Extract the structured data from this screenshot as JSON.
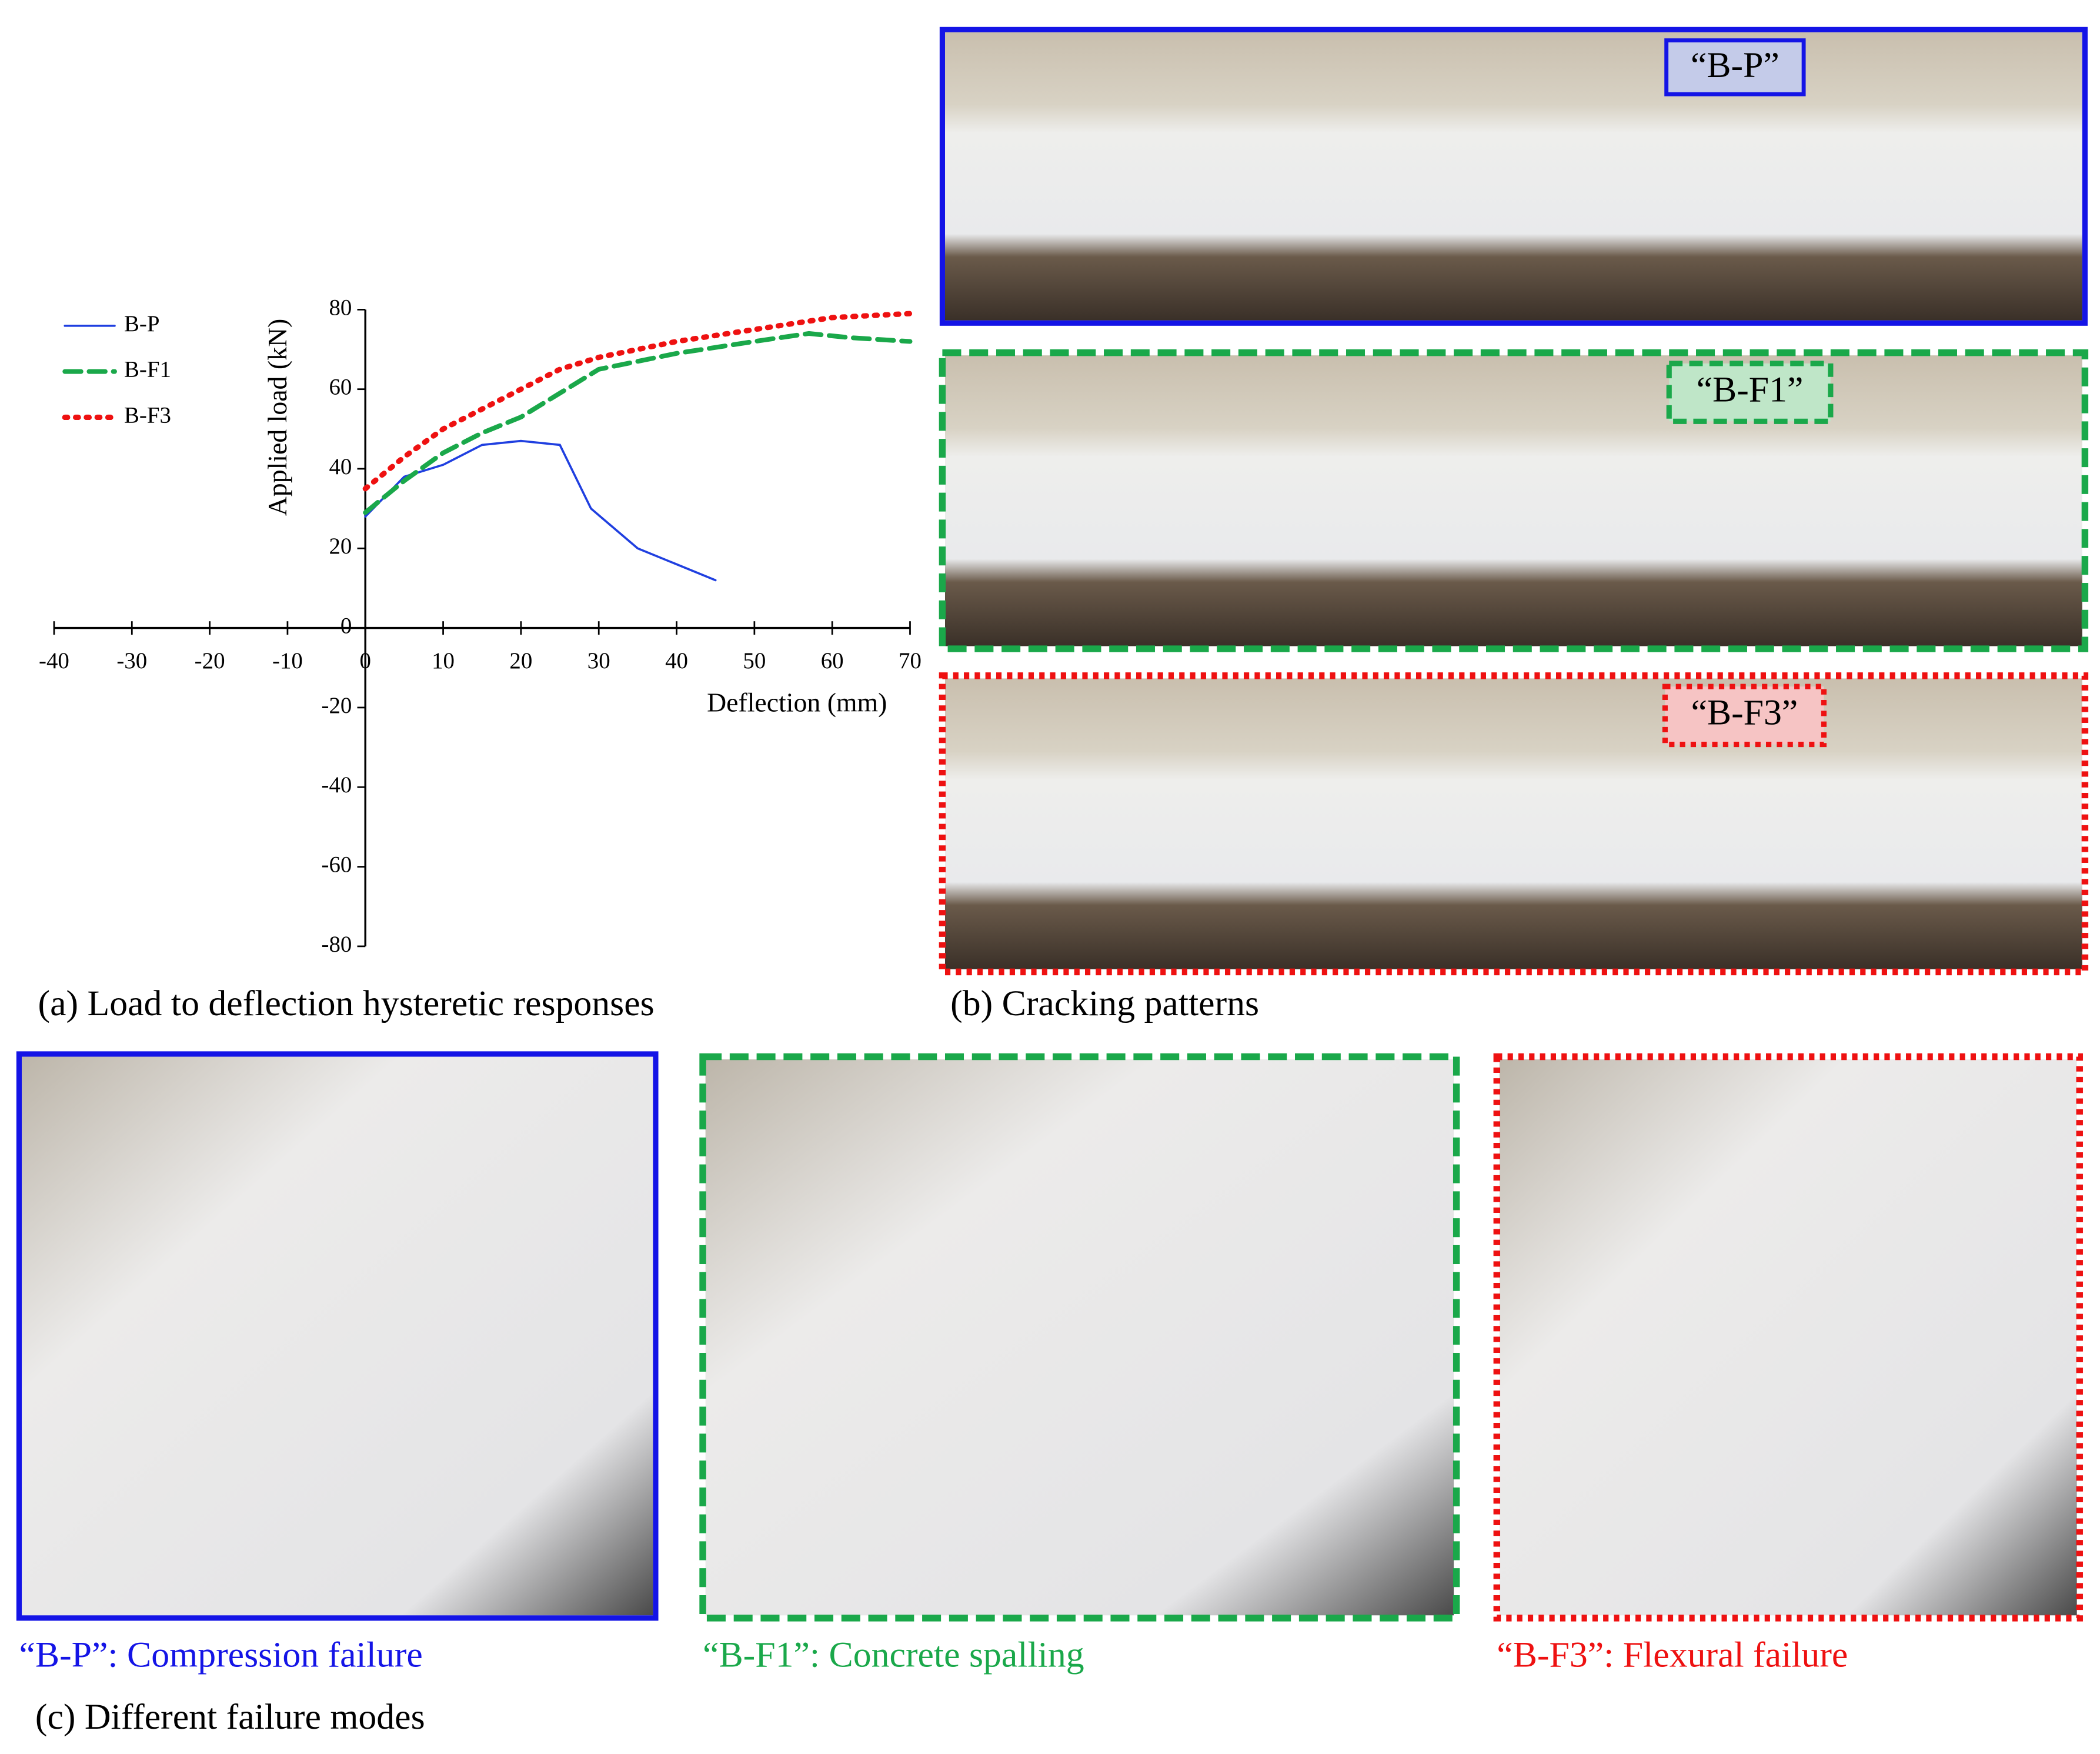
{
  "chart_data": {
    "type": "line",
    "x_label": "Deflection (mm)",
    "y_label": "Applied load (kN)",
    "xlim": [
      -40,
      70
    ],
    "xticks": [
      -40,
      -30,
      -20,
      -10,
      0,
      10,
      20,
      30,
      40,
      50,
      60,
      70
    ],
    "ylim": [
      -80,
      80
    ],
    "yticks": [
      -80,
      -60,
      -40,
      -20,
      0,
      20,
      40,
      60,
      80
    ],
    "series": [
      {
        "name": "B-P",
        "color": "#1f3fe0",
        "dash": "solid",
        "x": [
          0,
          5,
          10,
          15,
          20,
          25,
          29,
          35,
          45
        ],
        "values": [
          28,
          38,
          41,
          46,
          47,
          46,
          30,
          20,
          12
        ]
      },
      {
        "name": "B-F1",
        "color": "#1aa84a",
        "dash": "dashed",
        "x": [
          0,
          5,
          10,
          15,
          20,
          25,
          30,
          40,
          50,
          57,
          62,
          70
        ],
        "values": [
          29,
          37,
          44,
          49,
          53,
          59,
          65,
          69,
          72,
          74,
          73,
          72
        ]
      },
      {
        "name": "B-F3",
        "color": "#ee1111",
        "dash": "dotted",
        "x": [
          0,
          5,
          10,
          15,
          20,
          25,
          30,
          40,
          50,
          60,
          70
        ],
        "values": [
          35,
          43,
          50,
          55,
          60,
          65,
          68,
          72,
          75,
          78,
          79
        ]
      }
    ]
  },
  "figure": {
    "caption_a": "(a) Load to deflection hysteretic responses",
    "caption_b": "(b) Cracking patterns",
    "caption_c": "(c) Different failure modes",
    "photo_labels": [
      "“B-P”",
      "“B-F1”",
      "“B-F3”"
    ],
    "failure_captions": [
      "“B-P”: Compression failure",
      "“B-F1”: Concrete spalling",
      "“B-F3”: Flexural failure"
    ]
  }
}
